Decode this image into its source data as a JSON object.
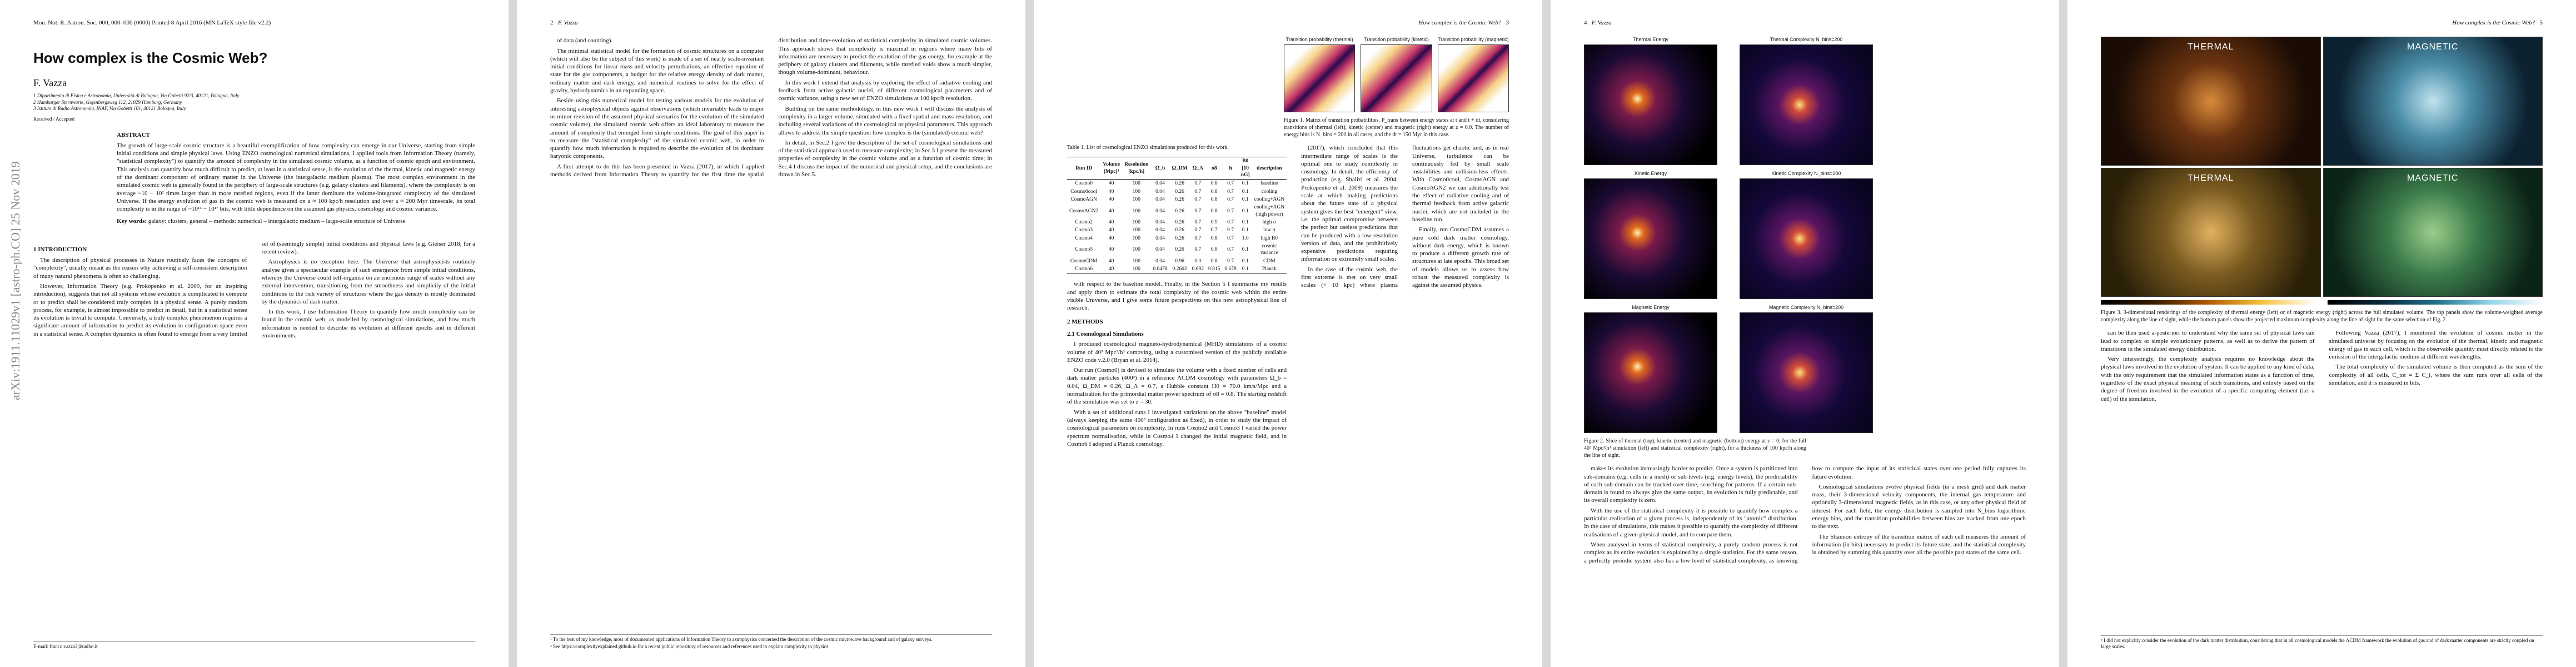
{
  "pages": [
    {
      "journal": "Mon. Not. R. Astron. Soc. 000, 000–000 (0000)    Printed 8 April 2016    (MN LaTeX style file v2.2)",
      "arxiv": "arXiv:1911.11029v1  [astro-ph.CO]  25 Nov 2019",
      "title": "How complex is the Cosmic Web?",
      "author": "F. Vazza",
      "affiliations": [
        "1 Dipartimento di Fisica e Astronomia, Università di Bologna, Via Gobetti 92/3, 40121, Bologna, Italy",
        "2 Hamburger Sternwarte, Gojenbergsweg 112, 21029 Hamburg, Germany",
        "3 Istituto di Radio Astronomia, INAF, Via Gobetti 101, 40121 Bologna, Italy"
      ],
      "received": "Received / Accepted",
      "abstract_heading": "ABSTRACT",
      "abstract": "The growth of large-scale cosmic structure is a beautiful exemplification of how complexity can emerge in our Universe, starting from simple initial conditions and simple physical laws. Using ENZO cosmological numerical simulations, I applied tools from Information Theory (namely, \"statistical complexity\") to quantify the amount of complexity in the simulated cosmic volume, as a function of cosmic epoch and environment. This analysis can quantify how much difficult to predict, at least in a statistical sense, is the evolution of the thermal, kinetic and magnetic energy of the dominant component of ordinary matter in the Universe (the intergalactic medium plasma). The most complex environment in the simulated cosmic web is generally found in the periphery of large-scale structures (e.g. galaxy clusters and filaments), where the complexity is on average ~10 − 10² times larger than in more rarefied regions, even if the latter dominate the volume-integrated complexity of the simulated Universe. If the energy evolution of gas in the cosmic web is measured on a ≈ 100 kpc/h resolution and over a ≈ 200 Myr timescale, its total complexity is in the range of ~10¹⁶ − 10¹⁷ bits, with little dependence on the assumed gas physics, cosmology and cosmic variance.",
      "keywords_label": "Key words:",
      "keywords": "galaxy: clusters, general – methods: numerical – intergalactic medium – large-scale structure of Universe",
      "body": [
        {
          "h": "1 INTRODUCTION"
        },
        {
          "p": "The description of physical processes in Nature routinely faces the concepts of \"complexity\", usually meant as the reason why achieving a self-consistent description of many natural phenomena is often so challenging."
        },
        {
          "p": "However, Information Theory (e.g. Prokopenko et al. 2009, for an inspiring introduction), suggests that not all systems whose evolution is complicated to compute or to predict shall be considered truly complex in a physical sense. A purely random process, for example, is almost impossible to predict in detail, but in a statistical sense its evolution is trivial to compute. Conversely, a truly complex phenomenon requires a significant amount of information to predict its evolution in configuration space even in a statistical sense. A complex dynamics is often found to emerge from a very limited set of (seemingly simple) initial conditions and physical laws (e.g. Gleiser 2018; for a recent review)."
        },
        {
          "p": "Astrophysics is no exception here. The Universe that astrophysicists routinely analyse gives a spectacular example of such emergence from simple initial conditions, whereby the Universe could self-organise on an enormous range of scales without any external intervention, transitioning from the smoothness and simplicity of the initial conditions to the rich variety of structures where the gas density is mostly dominated by the dynamics of dark matter."
        },
        {
          "p": "In this work, I use Information Theory to quantify how much complexity can be found in the cosmic web, as modelled by cosmological simulations, and how much information is needed to describe its evolution at different epochs and in different environments."
        }
      ],
      "footnote": "E-mail: franco.vazza2@unibo.it"
    },
    {
      "running": "F. Vazza",
      "number": "2",
      "body": [
        {
          "p": "of data (and counting)."
        },
        {
          "p": "The minimal statistical model for the formation of cosmic structures on a computer (which will also be the subject of this work) is made of a set of nearly scale-invariant initial conditions for linear mass and velocity perturbations, an effective equation of state for the gas components, a budget for the relative energy density of dark matter, ordinary matter and dark energy, and numerical routines to solve for the effect of gravity, hydrodynamics in an expanding space."
        },
        {
          "p": "Beside using this numerical model for testing various models for the evolution of interesting astrophysical objects against observations (which invariably leads to major or minor revision of the assumed physical scenarios for the evolution of the simulated cosmic volume), the simulated cosmic web offers an ideal laboratory to measure the amount of complexity that emerged from simple conditions. The goal of this paper is to measure the \"statistical complexity\" of the simulated cosmic web, in order to quantify how much information is required to describe the evolution of its dominant baryonic components."
        },
        {
          "p": "A first attempt to do this has been presented in Vazza (2017), in which I applied methods derived from Information Theory to quantify for the first time the spatial distribution and time-evolution of statistical complexity in simulated cosmic volumes. This approach shows that complexity is maximal in regions where many bits of information are necessary to predict the evolution of the gas energy, for example at the periphery of galaxy clusters and filaments, while rarefied voids show a much simpler, though volume-dominant, behaviour."
        },
        {
          "p": "In this work I extend that analysis by exploring the effect of radiative cooling and feedback from active galactic nuclei, of different cosmological parameters and of cosmic variance, using a new set of ENZO simulations at 100 kpc/h resolution."
        },
        {
          "p": "Building on the same methodology, in this new work I will discuss the analysis of complexity in a larger volume, simulated with a fixed spatial and mass resolution, and including several variations of the cosmological or physical parameters. This approach allows to address the simple question: how complex is the (simulated) cosmic web?"
        },
        {
          "p": "In detail, in Sec.2 I give the description of the set of cosmological simulations and of the statistical approach used to measure complexity; in Sec.3 I present the measured properties of complexity in the cosmic volume and as a function of cosmic time; in Sec.4 I discuss the impact of the numerical and physical setup, and the conclusions are drawn in Sec.5."
        }
      ],
      "footnotes": [
        "¹ To the best of my knowledge, most of documented applications of Information Theory to astrophysics concerned the description of the cosmic microwave background and of galaxy surveys.",
        "² See https://complexityexplained.github.io for a recent public repository of resources and references used to explain complexity to physics."
      ]
    },
    {
      "running": "How complex is the Cosmic Web?",
      "number": "3",
      "panels": [
        "Transition probability (thermal) z=0",
        "Transition probability (kinetic) z=0",
        "Transition probability (magnetic) z=0"
      ],
      "fig_caption": "Figure 1. Matrix of transition probabilities, P_trans between energy states at t and t + dt, considering transitions of thermal (left), kinetic (center) and magnetic (right) energy at z = 0.0. The number of energy bins is N_bins = 200 in all cases, and the dt = 150 Myr in this case.",
      "table": {
        "caption": "Table 1. List of cosmological ENZO simulations produced for this work.",
        "header": [
          "Run ID",
          "Volume [Mpc]³",
          "Resolution [kpc/h]",
          "Ω_b",
          "Ω_DM",
          "Ω_Λ",
          "σ8",
          "h",
          "B0 [10 nG]",
          "description"
        ],
        "rows": [
          [
            "Cosmo0",
            "40",
            "100",
            "0.04",
            "0.26",
            "0.7",
            "0.8",
            "0.7",
            "0.1",
            "baseline"
          ],
          [
            "Cosmo0cool",
            "40",
            "100",
            "0.04",
            "0.26",
            "0.7",
            "0.8",
            "0.7",
            "0.1",
            "cooling"
          ],
          [
            "CosmoAGN",
            "40",
            "100",
            "0.04",
            "0.26",
            "0.7",
            "0.8",
            "0.7",
            "0.1",
            "cooling+AGN"
          ],
          [
            "CosmoAGN2",
            "40",
            "100",
            "0.04",
            "0.26",
            "0.7",
            "0.8",
            "0.7",
            "0.1",
            "cooling+AGN (high power)"
          ],
          [
            "Cosmo2",
            "40",
            "100",
            "0.04",
            "0.26",
            "0.7",
            "0.9",
            "0.7",
            "0.1",
            "high σ"
          ],
          [
            "Cosmo3",
            "40",
            "100",
            "0.04",
            "0.26",
            "0.7",
            "0.7",
            "0.7",
            "0.1",
            "low σ"
          ],
          [
            "Cosmo4",
            "40",
            "100",
            "0.04",
            "0.26",
            "0.7",
            "0.8",
            "0.7",
            "1.0",
            "high B0"
          ],
          [
            "Cosmo5",
            "40",
            "100",
            "0.04",
            "0.26",
            "0.7",
            "0.8",
            "0.7",
            "0.1",
            "cosmic variance"
          ],
          [
            "CosmoCDM",
            "40",
            "100",
            "0.04",
            "0.96",
            "0.0",
            "0.8",
            "0.7",
            "0.1",
            "CDM"
          ],
          [
            "Cosmo6",
            "40",
            "100",
            "0.0478",
            "0.2602",
            "0.692",
            "0.815",
            "0.678",
            "0.1",
            "Planck"
          ]
        ]
      },
      "left": [
        {
          "p": "with respect to the baseline model. Finally, in the Section 5 I summarise my results and apply them to estimate the total complexity of the cosmic web within the entire visible Universe, and I give some future perspectives on this new astrophysical line of research."
        },
        {
          "h": "2 METHODS"
        },
        {
          "h2": "2.1 Cosmological Simulations"
        },
        {
          "p": "I produced cosmological magneto-hydrodynamical (MHD) simulations of a cosmic volume of 40³ Mpc³/h³ comoving, using a customised version of the publicly available ENZO code v.2.0 (Bryan et al. 2014)."
        },
        {
          "p": "Our run (Cosmo0) is devised to simulate the volume with a fixed number of cells and dark matter particles (400³) in a reference ΛCDM cosmology with parameters Ω_b = 0.04, Ω_DM = 0.26, Ω_Λ = 0.7, a Hubble constant H0 = 70.0 km/s/Mpc and a normalisation for the primordial matter power spectrum of σ8 = 0.8. The starting redshift of the simulation was set to z = 30."
        },
        {
          "p": "With a set of additional runs I investigated variations on the above \"baseline\" model (always keeping the same 400³ configuration as fixed), in order to study the impact of cosmological parameters on complexity. In runs Cosmo2 and Cosmo3 I varied the power spectrum normalisation, while in Cosmo4 I changed the initial magnetic field, and in Cosmo6 I adopted a Planck cosmology."
        }
      ],
      "right": [
        {
          "p": "(2017), which concluded that this intermediate range of scales is the optimal one to study complexity in cosmology. In detail, the efficiency of production (e.g. Shalizi et al. 2004; Prokopenko et al. 2009) measures the scale at which making predictions about the future state of a physical system gives the best \"emergent\" view, i.e. the optimal compromise between the perfect but useless predictions that can be produced with a low-resolution version of data, and the prohibitively expensive predictions requiring information on extremely small scales."
        },
        {
          "p": "In the case of the cosmic web, the first extreme is met on very small scales (< 10 kpc) where plasma fluctuations get chaotic and, as in real Universe, turbulence can be continuously fed by small scale instabilities and collision-less effects. With Cosmo0cool, CosmoAGN and CosmoAGN2 we can additionally test the effect of radiative cooling and of thermal feedback from active galactic nuclei, which are not included in the baseline run."
        },
        {
          "p": "Finally, run CosmoCDM assumes a pure cold dark matter cosmology, without dark energy, which is known to produce a different growth rate of structures at late epochs. This broad set of models allows us to assess how robust the measured complexity is against the assumed physics."
        }
      ]
    },
    {
      "running": "F. Vazza",
      "number": "4",
      "panels": [
        "Thermal Energy",
        "Thermal Complexity N_bins=200",
        "Kinetic Energy",
        "Kinetic Complexity N_bins=200",
        "Magnetic Energy",
        "Magnetic Complexity N_bins=200"
      ],
      "fig_caption": "Figure 2. Slice of thermal (top), kinetic (center) and magnetic (bottom) energy at z = 0, for the full 40³ Mpc³/h³ simulation (left) and statistical complexity (right), for a thickness of 100 kpc/h along the line of sight.",
      "body": [
        {
          "p": "makes its evolution increasingly harder to predict. Once a system is partitioned into sub-domains (e.g. cells in a mesh) or sub-levels (e.g. energy levels), the predictability of each sub-domain can be tracked over time, searching for patterns. If a certain sub-domain is found to always give the same output, its evolution is fully predictable, and its overall complexity is zero."
        },
        {
          "p": "With the use of the statistical complexity it is possible to quantify how complex a particular realisation of a given process is, independently of its \"atomic\" distribution. In the case of simulations, this makes it possible to quantify the complexity of different realisations of a given physical model, and to compare them."
        },
        {
          "p": "When analysed in terms of statistical complexity, a purely random process is not complex as its entire evolution is explained by a simple statistics. For the same reason, a perfectly periodic system also has a low level of statistical complexity, as knowing how to compute the input of its statistical states over one period fully captures its future evolution."
        },
        {
          "p": "Cosmological simulations evolve physical fields (in a mesh grid) and dark matter mass, their 3-dimensional velocity components, the internal gas temperature and optionally 3-dimensional magnetic fields, as in this case, or any other physical field of interest. For each field, the energy distribution is sampled into N_bins logarithmic energy bins, and the transition probabilities between bins are tracked from one epoch to the next."
        },
        {
          "p": "The Shannon entropy of the transition matrix of each cell measures the amount of information (in bits) necessary to predict its future state, and the statistical complexity is obtained by summing this quantity over all the possible past states of the same cell."
        }
      ]
    },
    {
      "running": "How complex is the Cosmic Web?",
      "number": "5",
      "panels": [
        "THERMAL",
        "MAGNETIC",
        "THERMAL",
        "MAGNETIC"
      ],
      "fig_caption": "Figure 3. 3-dimensional renderings of the complexity of thermal energy (left) or of magnetic energy (right) across the full simulated volume. The top panels show the volume-weighted average complexity along the line of sight, while the bottom panels show the projected maximum complexity along the line of sight for the same selection of Fig. 2.",
      "body": [
        {
          "p": "can be then used a-posteriori to understand why the same set of physical laws can lead to complex or simple evolutionary patterns, as well as to derive the pattern of transitions in the simulated energy distribution."
        },
        {
          "p": "Very interestingly, the complexity analysis requires no knowledge about the physical laws involved in the evolution of system. It can be applied to any kind of data, with the only requirement that the simulated information states as a function of time, regardless of the exact physical meaning of such transitions, and entirely based on the degree of freedom involved in the evolution of a specific computing element (i.e. a cell) of the simulation."
        },
        {
          "p": "Following Vazza (2017), I monitored the evolution of cosmic matter in the simulated universe by focusing on the evolution of the thermal, kinetic and magnetic energy of gas in each cell, which is the observable quantity most directly related to the emission of the intergalactic medium at different wavelengths."
        },
        {
          "p": "The total complexity of the simulated volume is then computed as the sum of the complexity of all cells, C_tot = Σ C_i, where the sum runs over all cells of the simulation, and it is measured in bits."
        }
      ],
      "footnotes": [
        "³ I did not explicitly consider the evolution of the dark matter distribution, considering that in all cosmological models the ΛCDM framework the evolution of gas and of dark matter components are strictly coupled on large scales."
      ]
    }
  ]
}
